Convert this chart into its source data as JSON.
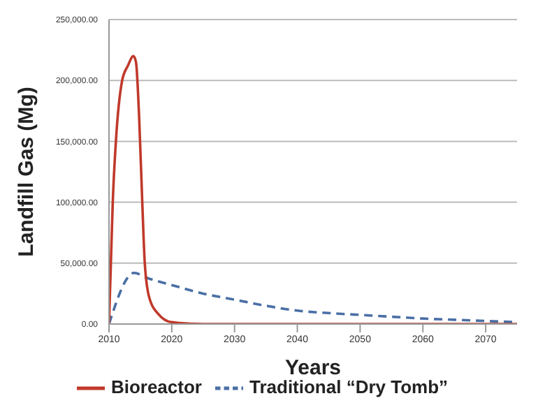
{
  "chart_data": {
    "type": "line",
    "xlabel": "Years",
    "ylabel": "Landfill Gas (Mg)",
    "xlim": [
      2010,
      2075
    ],
    "xticks": [
      2010,
      2020,
      2030,
      2040,
      2050,
      2060,
      2070
    ],
    "ylim": [
      0,
      250000
    ],
    "yticks": [
      {
        "value": 0,
        "label": "0.00"
      },
      {
        "value": 50000,
        "label": "50,000.00"
      },
      {
        "value": 100000,
        "label": "100,000.00"
      },
      {
        "value": 150000,
        "label": "150,000.00"
      },
      {
        "value": 200000,
        "label": "200,000.00"
      },
      {
        "value": 250000,
        "label": "250,000.00"
      }
    ],
    "grid": "y",
    "legend": "bottom",
    "marker": "none",
    "series": [
      {
        "name": "Traditional “Dry Tomb”",
        "color": "#4a6fa5",
        "line_style": "dashed",
        "x": [
          2010,
          2014,
          2016,
          2020,
          2025,
          2030,
          2035,
          2040,
          2045,
          2050,
          2055,
          2060,
          2065,
          2070,
          2075
        ],
        "values": [
          0,
          42000,
          38000,
          32000,
          25000,
          20000,
          15000,
          11000,
          9000,
          7500,
          6000,
          4500,
          3500,
          2500,
          1500
        ]
      },
      {
        "name": "Bioreactor",
        "color": "#c0392b",
        "line_style": "solid",
        "x": [
          2010,
          2010.3,
          2010.6,
          2011.1,
          2012.1,
          2013,
          2013.9,
          2014.3,
          2014.8,
          2015.3,
          2015.7,
          2016.4,
          2017.9,
          2020,
          2025,
          2075
        ],
        "values": [
          0,
          50000,
          100000,
          150000,
          200000,
          212000,
          220000,
          215000,
          170000,
          100000,
          50000,
          22000,
          8000,
          1500,
          0,
          0
        ]
      }
    ]
  }
}
